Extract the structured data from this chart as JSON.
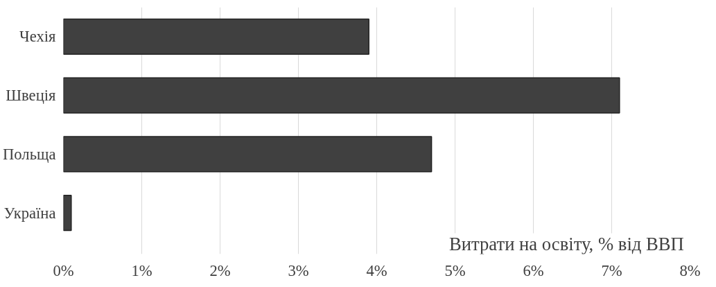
{
  "chart_data": {
    "type": "bar",
    "orientation": "horizontal",
    "xlabel": "Витрати на освіту, % від  ВВП",
    "categories": [
      "Чехія",
      "Швеція",
      "Польща",
      "Україна"
    ],
    "values": [
      3.9,
      7.1,
      4.7,
      0.1
    ],
    "color": "#404040",
    "xlim": [
      0,
      8
    ],
    "xticks": [
      {
        "value": 0,
        "label": "0%"
      },
      {
        "value": 1,
        "label": "1%"
      },
      {
        "value": 2,
        "label": "2%"
      },
      {
        "value": 3,
        "label": "3%"
      },
      {
        "value": 4,
        "label": "4%"
      },
      {
        "value": 5,
        "label": "5%"
      },
      {
        "value": 6,
        "label": "6%"
      },
      {
        "value": 7,
        "label": "7%"
      },
      {
        "value": 8,
        "label": "8%"
      }
    ],
    "grid": "x"
  }
}
